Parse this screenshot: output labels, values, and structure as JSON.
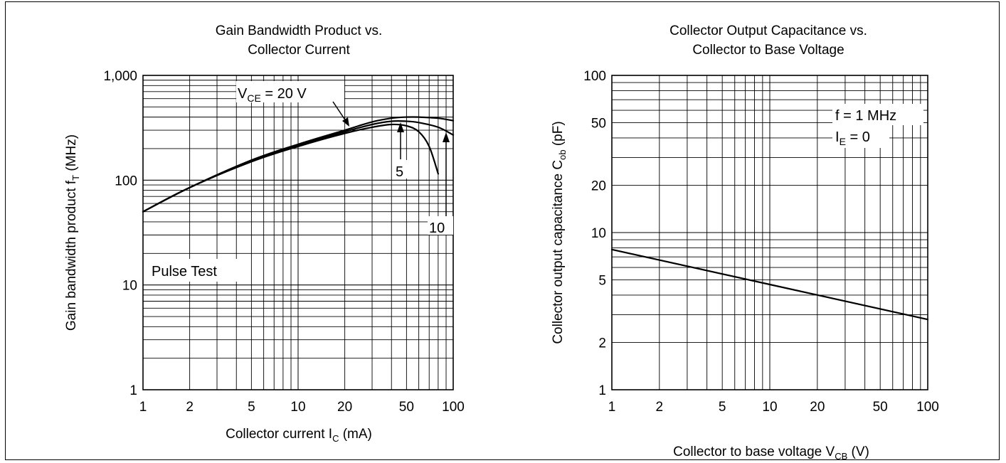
{
  "chart_data": [
    {
      "type": "line",
      "title": "Gain Bandwidth Product vs.",
      "subtitle": "Collector Current",
      "xlabel": {
        "main": "Collector current  I",
        "sub": "C",
        "unit": "  (mA)"
      },
      "ylabel": {
        "main": "Gain bandwidth product  f",
        "sub": "T",
        "unit": "  (MHz)"
      },
      "xscale": "log",
      "yscale": "log",
      "xlim": [
        1,
        100
      ],
      "ylim": [
        1,
        1000
      ],
      "grid": true,
      "x_ticks": [
        {
          "v": 1,
          "label": "1"
        },
        {
          "v": 2,
          "label": "2"
        },
        {
          "v": 5,
          "label": "5"
        },
        {
          "v": 10,
          "label": "10"
        },
        {
          "v": 20,
          "label": "20"
        },
        {
          "v": 50,
          "label": "50"
        },
        {
          "v": 100,
          "label": "100"
        }
      ],
      "y_ticks": [
        {
          "v": 1,
          "label": "1"
        },
        {
          "v": 10,
          "label": "10"
        },
        {
          "v": 100,
          "label": "100"
        },
        {
          "v": 1000,
          "label": "1,000"
        }
      ],
      "series": [
        {
          "name": "V_CE = 20 V",
          "x": [
            1,
            2,
            5,
            10,
            20,
            30,
            40,
            50,
            60,
            80,
            100
          ],
          "y": [
            50,
            85,
            155,
            220,
            300,
            360,
            390,
            400,
            400,
            390,
            370
          ]
        },
        {
          "name": "10",
          "x": [
            1,
            2,
            5,
            10,
            20,
            30,
            40,
            50,
            60,
            80,
            100
          ],
          "y": [
            50,
            85,
            155,
            215,
            290,
            340,
            365,
            365,
            355,
            320,
            270
          ]
        },
        {
          "name": "5",
          "x": [
            1,
            2,
            5,
            10,
            20,
            30,
            40,
            50,
            60,
            70,
            80
          ],
          "y": [
            50,
            85,
            150,
            210,
            280,
            320,
            340,
            330,
            290,
            210,
            115
          ]
        }
      ],
      "annotations": [
        {
          "id": "vce",
          "main": "V",
          "sub": "CE",
          "rest": " = 20 V"
        },
        {
          "id": "five",
          "text": "5"
        },
        {
          "id": "ten",
          "text": "10"
        },
        {
          "id": "pulse",
          "text": "Pulse Test"
        }
      ]
    },
    {
      "type": "line",
      "title": "Collector Output Capacitance vs.",
      "subtitle": "Collector to Base Voltage",
      "xlabel": {
        "main": "Collector to base voltage  V",
        "sub": "CB",
        "unit": "  (V)"
      },
      "ylabel": {
        "main": "Collector output capacitance  C",
        "sub": "ob",
        "unit": "  (pF)"
      },
      "xscale": "log",
      "yscale": "log",
      "xlim": [
        1,
        100
      ],
      "ylim": [
        1,
        100
      ],
      "grid": true,
      "x_ticks": [
        {
          "v": 1,
          "label": "1"
        },
        {
          "v": 2,
          "label": "2"
        },
        {
          "v": 5,
          "label": "5"
        },
        {
          "v": 10,
          "label": "10"
        },
        {
          "v": 20,
          "label": "20"
        },
        {
          "v": 50,
          "label": "50"
        },
        {
          "v": 100,
          "label": "100"
        }
      ],
      "y_ticks": [
        {
          "v": 1,
          "label": "1"
        },
        {
          "v": 2,
          "label": "2"
        },
        {
          "v": 5,
          "label": "5"
        },
        {
          "v": 10,
          "label": "10"
        },
        {
          "v": 20,
          "label": "20"
        },
        {
          "v": 50,
          "label": "50"
        },
        {
          "v": 100,
          "label": "100"
        }
      ],
      "series": [
        {
          "name": "",
          "x": [
            1,
            100
          ],
          "y": [
            7.8,
            2.8
          ]
        }
      ],
      "annotations": [
        {
          "id": "freq",
          "text": "f = 1 MHz"
        },
        {
          "id": "ie",
          "main": "I",
          "sub": "E",
          "rest": " = 0"
        }
      ]
    }
  ]
}
